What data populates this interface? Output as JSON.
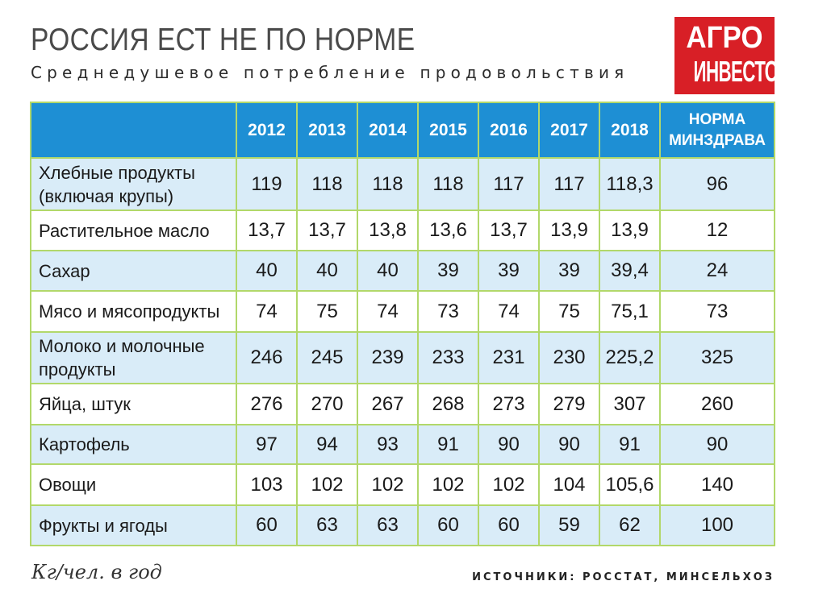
{
  "header": {
    "title": "РОССИЯ ЕСТ НЕ ПО НОРМЕ",
    "subtitle": "Среднедушевое потребление продовольствия"
  },
  "logo": {
    "line1": "АГРО",
    "line2": "ИНВЕСТОР",
    "background_color": "#d81f26"
  },
  "colors": {
    "header_bg": "#1e8fd4",
    "row_alt_bg": "#d9ecf8",
    "grid_lines": "#b2d86a"
  },
  "chart_data": {
    "type": "table",
    "title": "РОССИЯ ЕСТ НЕ ПО НОРМЕ",
    "subtitle": "Среднедушевое потребление продовольствия",
    "columns": [
      "",
      "2012",
      "2013",
      "2014",
      "2015",
      "2016",
      "2017",
      "2018",
      "НОРМА МИНЗДРАВА"
    ],
    "norm_header_lines": [
      "НОРМА",
      "МИНЗДРАВА"
    ],
    "rows": [
      {
        "label_lines": [
          "Хлебные продукты",
          "(включая крупы)"
        ],
        "values": [
          "119",
          "118",
          "118",
          "118",
          "117",
          "117",
          "118,3",
          "96"
        ]
      },
      {
        "label_lines": [
          "Растительное масло"
        ],
        "values": [
          "13,7",
          "13,7",
          "13,8",
          "13,6",
          "13,7",
          "13,9",
          "13,9",
          "12"
        ]
      },
      {
        "label_lines": [
          "Сахар"
        ],
        "values": [
          "40",
          "40",
          "40",
          "39",
          "39",
          "39",
          "39,4",
          "24"
        ]
      },
      {
        "label_lines": [
          "Мясо и мясопродукты"
        ],
        "values": [
          "74",
          "75",
          "74",
          "73",
          "74",
          "75",
          "75,1",
          "73"
        ]
      },
      {
        "label_lines": [
          "Молоко и молочные",
          "продукты"
        ],
        "values": [
          "246",
          "245",
          "239",
          "233",
          "231",
          "230",
          "225,2",
          "325"
        ]
      },
      {
        "label_lines": [
          "Яйца, штук"
        ],
        "values": [
          "276",
          "270",
          "267",
          "268",
          "273",
          "279",
          "307",
          "260"
        ]
      },
      {
        "label_lines": [
          "Картофель"
        ],
        "values": [
          "97",
          "94",
          "93",
          "91",
          "90",
          "90",
          "91",
          "90"
        ]
      },
      {
        "label_lines": [
          "Овощи"
        ],
        "values": [
          "103",
          "102",
          "102",
          "102",
          "102",
          "104",
          "105,6",
          "140"
        ]
      },
      {
        "label_lines": [
          "Фрукты и ягоды"
        ],
        "values": [
          "60",
          "63",
          "63",
          "60",
          "60",
          "59",
          "62",
          "100"
        ]
      }
    ],
    "units": "Кг/чел. в год",
    "source": "ИСТОЧНИКИ: РОССТАТ, МИНСЕЛЬХОЗ"
  }
}
